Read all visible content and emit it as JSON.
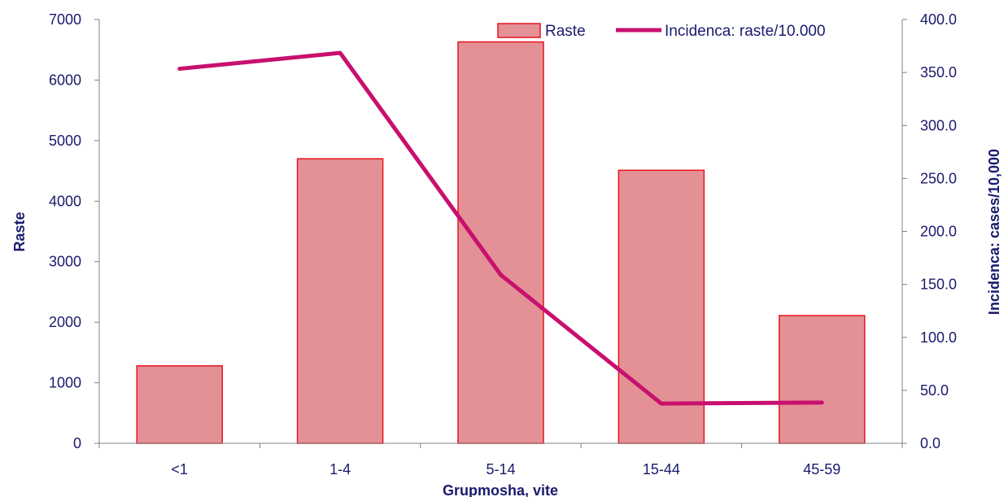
{
  "chart_data": {
    "type": "bar",
    "categories": [
      "<1",
      "1-4",
      "5-14",
      "15-44",
      "45-59"
    ],
    "series": [
      {
        "name": "Raste",
        "type": "bar",
        "axis": "left",
        "values": [
          1280,
          4700,
          6630,
          4510,
          2110
        ],
        "color": "#e39196",
        "stroke": "#e8141e"
      },
      {
        "name": "Incidenca: raste/10.000",
        "type": "line",
        "axis": "right",
        "values": [
          353.5,
          368.5,
          159.0,
          37.5,
          38.5
        ],
        "color": "#c8106e"
      }
    ],
    "xlabel": "Grupmosha, vite",
    "ylabel": "Raste",
    "y2label": "Incidenca: cases/10,000",
    "ylim": [
      0,
      7000
    ],
    "y2lim": [
      0,
      400
    ],
    "yticks": [
      "0",
      "1000",
      "2000",
      "3000",
      "4000",
      "5000",
      "6000",
      "7000"
    ],
    "y2ticks": [
      "0.0",
      "50.0",
      "100.0",
      "150.0",
      "200.0",
      "250.0",
      "300.0",
      "350.0",
      "400.0"
    ],
    "grid": false,
    "legend": "top-right"
  }
}
